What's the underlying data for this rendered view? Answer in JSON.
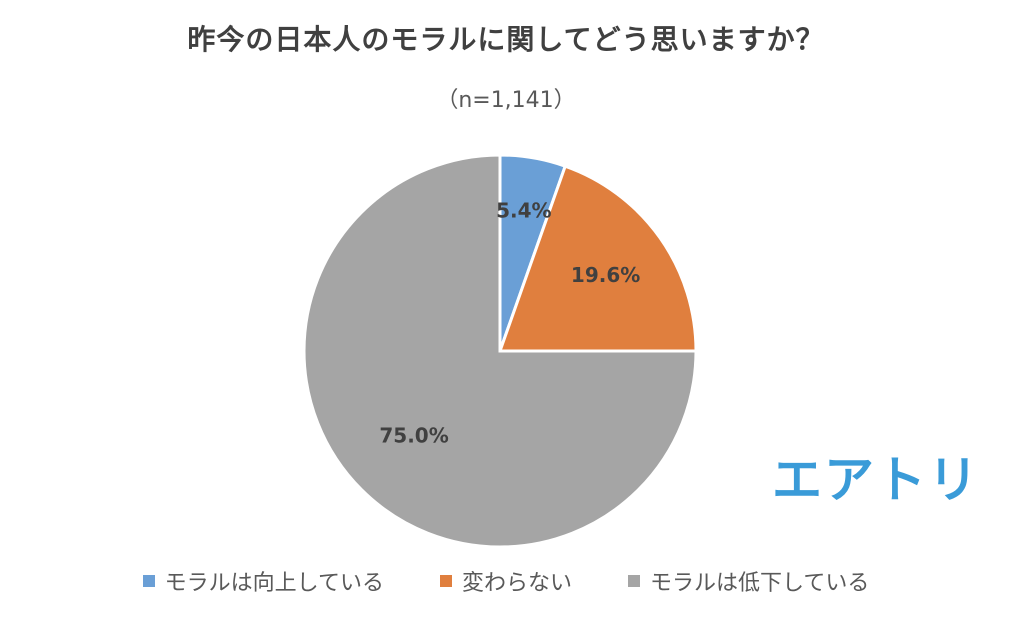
{
  "chart_data": {
    "type": "pie",
    "title": "昨今の日本人のモラルに関してどう思いますか？",
    "subtitle": "（n=1,141）",
    "slices": [
      {
        "label": "モラルは向上している",
        "value": 5.4,
        "display": "5.4%",
        "color": "#6a9fd6"
      },
      {
        "label": "変わらない",
        "value": 19.6,
        "display": "19.6%",
        "color": "#e07f3e"
      },
      {
        "label": "モラルは低下している",
        "value": 75.0,
        "display": "75.0%",
        "color": "#a5a5a5"
      }
    ],
    "legend_position": "bottom"
  },
  "logo": {
    "text": "エアトリ",
    "color": "#3a9bd8"
  }
}
